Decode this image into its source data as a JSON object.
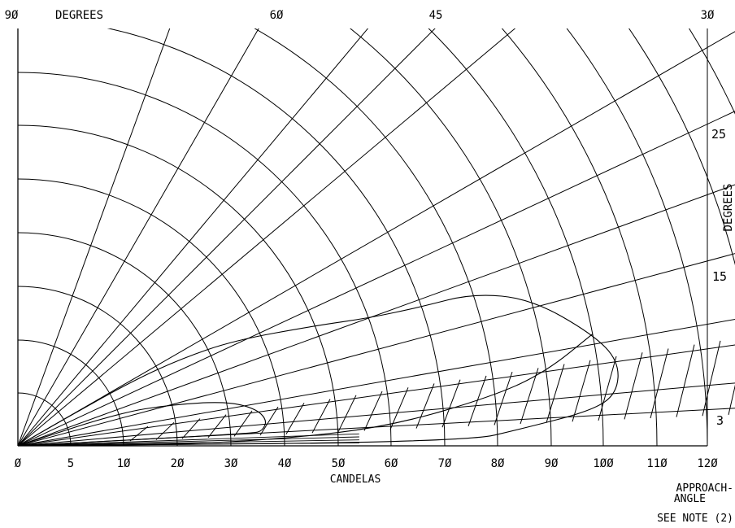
{
  "chart_data": {
    "type": "polar",
    "xlabel": "CANDELAS",
    "x_ticks": [
      0,
      5,
      10,
      20,
      30,
      40,
      50,
      60,
      70,
      80,
      90,
      100,
      110,
      120
    ],
    "x_tick_labels": [
      "Ø",
      "5",
      "1Ø",
      "2Ø",
      "3Ø",
      "4Ø",
      "5Ø",
      "6Ø",
      "7Ø",
      "8Ø",
      "9Ø",
      "1ØØ",
      "11Ø",
      "12Ø"
    ],
    "top_axis_label": "DEGREES",
    "top_angle_labels": [
      {
        "angle": 90,
        "text": "9Ø"
      },
      {
        "angle": 60,
        "text": "6Ø"
      },
      {
        "angle": 45,
        "text": "45"
      },
      {
        "angle": 30,
        "text": "3Ø"
      }
    ],
    "right_axis_label": "DEGREES",
    "right_angle_labels": [
      {
        "angle": 25,
        "text": "25"
      },
      {
        "angle": 15,
        "text": "15"
      },
      {
        "angle": 3,
        "text": "3"
      }
    ],
    "approach_angle_label": [
      "APPROACH-",
      "ANGLE"
    ],
    "note": "SEE NOTE (2)",
    "radial_lines_deg": [
      3,
      5,
      8,
      10,
      15,
      20,
      25,
      30,
      40,
      45,
      50,
      60,
      70
    ],
    "radial_lines_to_bottom_deg": [
      0.5,
      1,
      1.5,
      2
    ],
    "arc_radii_candelas": [
      5,
      10,
      20,
      30,
      40,
      50,
      60,
      70,
      80,
      90,
      100,
      110,
      120,
      130,
      140,
      150,
      160,
      170
    ],
    "hatched_band_deg": [
      2.5,
      8.5
    ],
    "series": [
      {
        "points": [
          [
            0,
            20
          ],
          [
            10,
            18
          ],
          [
            20,
            15
          ],
          [
            30,
            12
          ],
          [
            35,
            9
          ],
          [
            37,
            6
          ],
          [
            36,
            3.5
          ],
          [
            34,
            3
          ],
          [
            0,
            0
          ]
        ]
      },
      {
        "points": [
          [
            0,
            30
          ],
          [
            5,
            30
          ],
          [
            15,
            29.5
          ],
          [
            25,
            28
          ],
          [
            35,
            26
          ],
          [
            50,
            22
          ],
          [
            60,
            20
          ],
          [
            70,
            19
          ],
          [
            80,
            18.5
          ],
          [
            90,
            16
          ],
          [
            100,
            11
          ],
          [
            104,
            8
          ],
          [
            103,
            5
          ],
          [
            98,
            3.5
          ],
          [
            85,
            2
          ],
          [
            74,
            0.5
          ],
          [
            0,
            0
          ]
        ]
      },
      {
        "points": [
          [
            0,
            0
          ],
          [
            20,
            0.5
          ],
          [
            40,
            1.5
          ],
          [
            60,
            3
          ],
          [
            80,
            6
          ],
          [
            90,
            8
          ],
          [
            100,
            11
          ]
        ]
      }
    ]
  }
}
